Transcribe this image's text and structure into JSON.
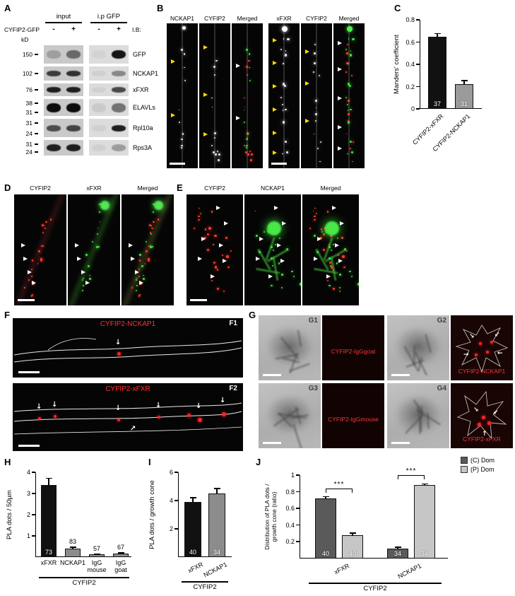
{
  "colors": {
    "red_signal": "#ff3b30",
    "green_signal": "#3ce23c",
    "yellow_arrowhead": "#ffdf00",
    "red_label": "#ff3232"
  },
  "A": {
    "label": "A",
    "group_input": "input",
    "group_ip": "i.p GFP",
    "row_name": "CYFIP2-GFP",
    "signs": [
      "-",
      "+",
      "-",
      "+"
    ],
    "ib": "I.B:",
    "kd": "kD",
    "blots": [
      {
        "name": "GFP",
        "markers": [
          "150"
        ]
      },
      {
        "name": "NCKAP1",
        "markers": [
          "102"
        ]
      },
      {
        "name": "xFXR",
        "markers": [
          "76"
        ]
      },
      {
        "name": "ELAVLs",
        "markers": [
          "38",
          "31"
        ]
      },
      {
        "name": "Rpl10a",
        "markers": [
          "31",
          "24"
        ]
      },
      {
        "name": "Rps3A",
        "markers": [
          "31",
          "24"
        ]
      }
    ]
  },
  "B": {
    "label": "B",
    "headers": [
      "NCKAP1",
      "CYFIP2",
      "Merged",
      "xFXR",
      "CYFIP2",
      "Merged"
    ]
  },
  "C": {
    "label": "C"
  },
  "D": {
    "label": "D",
    "headers": [
      "CYFIP2",
      "xFXR",
      "Merged"
    ]
  },
  "E": {
    "label": "E",
    "headers": [
      "CYFIP2",
      "NCKAP1",
      "Merged"
    ]
  },
  "F": {
    "label": "F",
    "sub": [
      {
        "title": "CYFIP2-NCKAP1",
        "tag": "F1"
      },
      {
        "title": "CYFIP2-xFXR",
        "tag": "F2"
      }
    ]
  },
  "G": {
    "label": "G",
    "cells": [
      {
        "tag": "G1",
        "label": "CYFIP2-IgGgoat"
      },
      {
        "tag": "G2",
        "label": "CYFIP2-NCKAP1"
      },
      {
        "tag": "G3",
        "label": "CYFIP2-IgGmouse"
      },
      {
        "tag": "G4",
        "label": "CYFIP2-xFXR"
      }
    ]
  },
  "H": {
    "label": "H"
  },
  "I": {
    "label": "I"
  },
  "J": {
    "label": "J"
  },
  "chart_data": [
    {
      "id": "C",
      "type": "bar",
      "ylabel": "Manders' coefficient",
      "categories": [
        "CYFIP2-xFXR",
        "CYFIP2-NCKAP1"
      ],
      "values": [
        0.65,
        0.22
      ],
      "errors": [
        0.03,
        0.04
      ],
      "n_labels": [
        37,
        31
      ],
      "n_inside": [
        true,
        true
      ],
      "bar_colors": [
        "#111111",
        "#9a9a9a"
      ],
      "ylim": [
        0,
        0.8
      ],
      "yticks": [
        0,
        0.2,
        0.4,
        0.6,
        0.8
      ]
    },
    {
      "id": "H",
      "type": "bar",
      "ylabel": "PLA dots / 50µm",
      "categories": [
        "xFXR",
        "NCKAP1",
        "IgG\nmouse",
        "IgG\ngoat"
      ],
      "values": [
        3.4,
        0.4,
        0.12,
        0.16
      ],
      "errors": [
        0.35,
        0.1,
        0.05,
        0.06
      ],
      "n_labels": [
        73,
        83,
        57,
        67
      ],
      "n_inside": [
        true,
        false,
        false,
        false
      ],
      "bar_colors": [
        "#111111",
        "#8c8c8c",
        "#8c8c8c",
        "#8c8c8c"
      ],
      "ylim": [
        0,
        4
      ],
      "yticks": [
        1,
        2,
        3,
        4
      ],
      "group_label": "CYFIP2"
    },
    {
      "id": "I",
      "type": "bar",
      "ylabel": "PLA dots / growth cone",
      "categories": [
        "xFXR",
        "NCKAP1"
      ],
      "values": [
        3.9,
        4.5
      ],
      "errors": [
        0.35,
        0.4
      ],
      "n_labels": [
        40,
        34
      ],
      "n_inside": [
        true,
        true
      ],
      "bar_colors": [
        "#111111",
        "#8c8c8c"
      ],
      "ylim": [
        0,
        6
      ],
      "yticks": [
        2,
        4,
        6
      ],
      "group_label": "CYFIP2"
    },
    {
      "id": "J",
      "type": "grouped-bar",
      "ylabel": "Distribution of PLA dots / growth cone (ratio)",
      "categories": [
        "xFXR",
        "NCKAP1"
      ],
      "series": [
        {
          "name": "(C) Dom",
          "color": "#5a5a5a",
          "values": [
            0.72,
            0.12
          ],
          "errors": [
            0.03,
            0.02
          ],
          "n_labels": [
            40,
            34
          ]
        },
        {
          "name": "(P) Dom",
          "color": "#c6c6c6",
          "values": [
            0.28,
            0.88
          ],
          "errors": [
            0.03,
            0.02
          ],
          "n_labels": [
            40,
            34
          ]
        }
      ],
      "significance": [
        "***",
        "***"
      ],
      "ylim": [
        0,
        1
      ],
      "yticks": [
        0.2,
        0.4,
        0.6,
        0.8,
        1
      ],
      "group_label": "CYFIP2"
    }
  ]
}
